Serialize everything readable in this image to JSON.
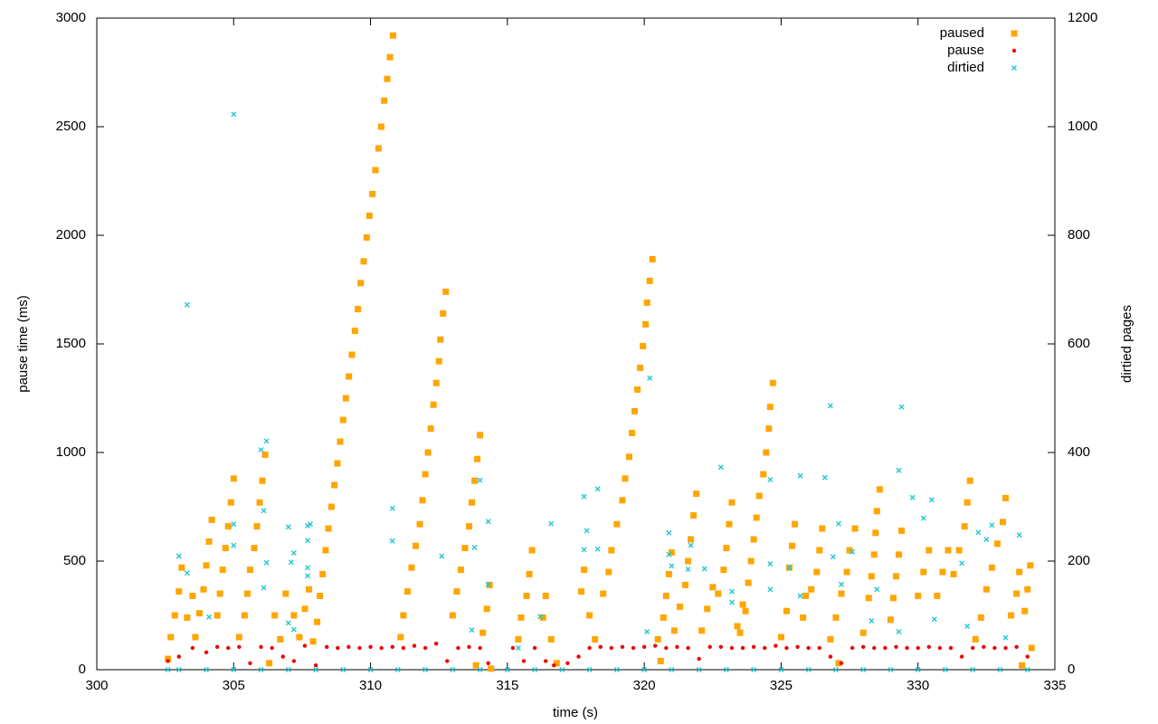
{
  "chart_data": {
    "type": "scatter",
    "xlabel": "time (s)",
    "ylabel": "pause time (ms)",
    "y2label": "dirtied pages",
    "xlim": [
      300,
      335
    ],
    "xticks": [
      300,
      305,
      310,
      315,
      320,
      325,
      330,
      335
    ],
    "ylim": [
      0,
      3000
    ],
    "yticks": [
      0,
      500,
      1000,
      1500,
      2000,
      2500,
      3000
    ],
    "y2lim": [
      0,
      1200
    ],
    "y2ticks": [
      0,
      200,
      400,
      600,
      800,
      1000,
      1200
    ],
    "legend": "top-right",
    "series": [
      {
        "name": "paused",
        "color": "#ffa500",
        "marker": "square",
        "axis": "y",
        "x": [
          302.6,
          302.7,
          302.85,
          303.0,
          303.1,
          303.3,
          303.5,
          303.6,
          303.75,
          303.9,
          304.0,
          304.1,
          304.2,
          304.4,
          304.5,
          304.6,
          304.7,
          304.8,
          304.9,
          305.0,
          305.2,
          305.4,
          305.5,
          305.6,
          305.75,
          305.85,
          305.95,
          306.05,
          306.15,
          306.3,
          306.5,
          306.7,
          306.9,
          307.2,
          307.4,
          307.6,
          307.75,
          307.9,
          308.05,
          308.15,
          308.25,
          308.36,
          308.46,
          308.57,
          308.68,
          308.79,
          308.89,
          309.0,
          309.1,
          309.21,
          309.32,
          309.43,
          309.54,
          309.64,
          309.75,
          309.86,
          309.96,
          310.07,
          310.18,
          310.29,
          310.39,
          310.5,
          310.61,
          310.71,
          310.82,
          311.1,
          311.2,
          311.35,
          311.5,
          311.65,
          311.8,
          311.9,
          312.0,
          312.1,
          312.2,
          312.3,
          312.4,
          312.5,
          312.55,
          312.65,
          312.75,
          313.0,
          313.15,
          313.3,
          313.45,
          313.6,
          313.7,
          313.8,
          313.9,
          314.0,
          313.85,
          314.1,
          314.25,
          314.35,
          314.4,
          315.4,
          315.5,
          315.7,
          315.8,
          315.9,
          316.3,
          316.4,
          316.6,
          316.8,
          317.7,
          317.8,
          318.0,
          318.2,
          318.5,
          318.7,
          318.8,
          319.0,
          319.2,
          319.3,
          319.45,
          319.55,
          319.65,
          319.75,
          319.85,
          319.95,
          320.05,
          320.1,
          320.2,
          320.3,
          320.6,
          320.5,
          320.7,
          320.8,
          320.9,
          321.0,
          321.1,
          321.3,
          321.5,
          321.6,
          321.7,
          321.8,
          321.9,
          322.1,
          322.3,
          322.5,
          322.7,
          322.9,
          323.0,
          323.1,
          323.2,
          323.5,
          323.7,
          323.4,
          323.6,
          323.8,
          323.9,
          324.0,
          324.1,
          324.2,
          324.35,
          324.45,
          324.55,
          324.6,
          324.7,
          325.0,
          325.2,
          325.3,
          325.4,
          325.5,
          325.8,
          325.9,
          326.1,
          326.3,
          326.4,
          326.5,
          326.8,
          327.0,
          327.1,
          327.2,
          327.4,
          327.5,
          327.7,
          328.0,
          328.2,
          328.3,
          328.4,
          328.45,
          328.5,
          328.6,
          329.0,
          329.1,
          329.2,
          329.3,
          329.4,
          330.0,
          330.2,
          330.4,
          330.7,
          330.9,
          331.1,
          331.3,
          331.5,
          331.7,
          331.8,
          331.9,
          332.1,
          332.3,
          332.5,
          332.7,
          332.9,
          333.1,
          333.2,
          333.4,
          333.6,
          333.7,
          333.8,
          333.9,
          334.0,
          334.1,
          334.15
        ],
        "values": [
          50,
          150,
          250,
          360,
          470,
          240,
          340,
          150,
          260,
          370,
          480,
          590,
          690,
          250,
          350,
          460,
          560,
          660,
          770,
          880,
          150,
          250,
          350,
          460,
          560,
          660,
          770,
          870,
          990,
          30,
          250,
          140,
          350,
          250,
          150,
          280,
          370,
          130,
          220,
          340,
          440,
          550,
          650,
          750,
          850,
          950,
          1050,
          1150,
          1250,
          1350,
          1450,
          1560,
          1660,
          1780,
          1880,
          1990,
          2090,
          2190,
          2300,
          2400,
          2500,
          2620,
          2720,
          2820,
          2920,
          150,
          250,
          360,
          470,
          570,
          670,
          780,
          900,
          1000,
          1110,
          1220,
          1320,
          1420,
          1520,
          1640,
          1740,
          250,
          360,
          460,
          560,
          660,
          770,
          870,
          970,
          1080,
          20,
          170,
          280,
          390,
          5,
          140,
          240,
          340,
          440,
          550,
          240,
          340,
          140,
          30,
          360,
          460,
          250,
          140,
          350,
          450,
          550,
          670,
          780,
          880,
          980,
          1090,
          1190,
          1290,
          1390,
          1490,
          1590,
          1690,
          1790,
          1890,
          40,
          140,
          240,
          340,
          440,
          540,
          180,
          290,
          390,
          500,
          600,
          710,
          810,
          180,
          280,
          380,
          350,
          460,
          560,
          670,
          770,
          170,
          270,
          200,
          300,
          400,
          500,
          600,
          700,
          800,
          900,
          1000,
          1110,
          1210,
          1320,
          150,
          270,
          470,
          570,
          670,
          240,
          340,
          370,
          450,
          550,
          650,
          140,
          240,
          30,
          350,
          450,
          550,
          650,
          170,
          330,
          430,
          530,
          630,
          730,
          830,
          230,
          330,
          430,
          530,
          640,
          340,
          450,
          550,
          340,
          450,
          550,
          440,
          550,
          660,
          770,
          870,
          140,
          240,
          370,
          470,
          580,
          680,
          790,
          250,
          350,
          450,
          20,
          270,
          370,
          480,
          100
        ]
      },
      {
        "name": "pause",
        "color": "#ee0000",
        "marker": "dot",
        "axis": "y",
        "x": [
          302.6,
          303.0,
          303.5,
          304.0,
          304.4,
          304.8,
          305.2,
          305.6,
          306.0,
          306.4,
          306.8,
          307.2,
          307.6,
          308.0,
          308.4,
          308.8,
          309.2,
          309.6,
          310.0,
          310.4,
          310.8,
          311.2,
          311.6,
          312.0,
          312.4,
          312.8,
          313.2,
          313.6,
          314.0,
          314.3,
          315.2,
          315.6,
          316.0,
          316.4,
          316.7,
          317.2,
          317.6,
          318.0,
          318.4,
          318.8,
          319.2,
          319.6,
          320.0,
          320.4,
          320.8,
          321.2,
          321.6,
          322.0,
          322.4,
          322.8,
          323.2,
          323.6,
          324.0,
          324.4,
          324.8,
          325.2,
          325.6,
          326.0,
          326.4,
          326.8,
          327.2,
          327.6,
          328.0,
          328.4,
          328.8,
          329.2,
          329.6,
          330.0,
          330.4,
          330.8,
          331.2,
          331.6,
          332.0,
          332.4,
          332.8,
          333.2,
          333.6,
          334.0
        ],
        "values": [
          40,
          60,
          100,
          80,
          105,
          100,
          105,
          30,
          105,
          100,
          60,
          40,
          110,
          20,
          105,
          100,
          105,
          100,
          105,
          100,
          105,
          100,
          110,
          100,
          120,
          40,
          100,
          105,
          100,
          30,
          100,
          40,
          100,
          40,
          20,
          30,
          60,
          100,
          105,
          100,
          105,
          100,
          105,
          110,
          100,
          105,
          100,
          50,
          105,
          105,
          100,
          100,
          105,
          100,
          110,
          100,
          105,
          100,
          100,
          60,
          30,
          100,
          105,
          100,
          100,
          105,
          100,
          100,
          105,
          100,
          100,
          60,
          100,
          105,
          100,
          100,
          105,
          60
        ]
      },
      {
        "name": "dirtied",
        "color": "#22c8d0",
        "marker": "cross",
        "axis": "y2",
        "x": [
          303.3,
          305.0,
          306.2,
          306.0,
          305.0,
          305.0,
          303.0,
          303.3,
          304.1,
          306.1,
          306.2,
          306.1,
          307.0,
          307.2,
          307.7,
          307.8,
          307.7,
          307.7,
          307.7,
          307.0,
          307.2,
          307.1,
          310.8,
          310.8,
          312.6,
          313.7,
          313.8,
          314.0,
          314.3,
          314.3,
          315.4,
          316.2,
          316.6,
          317.8,
          317.9,
          317.8,
          318.3,
          318.3,
          320.1,
          320.2,
          320.9,
          321.0,
          320.9,
          321.6,
          321.7,
          322.2,
          322.8,
          323.2,
          323.2,
          324.6,
          324.6,
          324.6,
          325.3,
          325.7,
          325.7,
          326.6,
          326.8,
          326.9,
          327.1,
          327.2,
          327.6,
          328.3,
          328.5,
          329.4,
          329.3,
          329.3,
          329.8,
          330.2,
          330.5,
          330.6,
          331.6,
          331.8,
          332.2,
          332.5,
          332.7,
          333.7,
          333.2,
          302.6,
          303,
          304,
          305,
          306,
          307,
          308,
          309,
          310,
          311,
          312,
          313,
          314,
          315,
          316,
          317,
          318,
          319,
          320,
          321,
          322,
          323,
          324,
          325,
          326,
          327,
          328,
          329,
          330,
          331,
          332,
          333,
          334
        ],
        "values": [
          672,
          1023,
          421,
          405,
          268,
          229,
          209,
          178,
          97,
          293,
          197,
          151,
          263,
          215,
          265,
          268,
          238,
          188,
          173,
          86,
          74,
          198,
          297,
          237,
          209,
          73,
          225,
          349,
          273,
          157,
          40,
          98,
          269,
          319,
          256,
          221,
          333,
          222,
          70,
          537,
          252,
          191,
          212,
          185,
          229,
          186,
          373,
          144,
          124,
          350,
          195,
          148,
          188,
          136,
          357,
          354,
          486,
          208,
          269,
          157,
          217,
          90,
          148,
          484,
          367,
          70,
          317,
          279,
          313,
          93,
          196,
          80,
          253,
          240,
          266,
          248,
          59,
          0,
          0,
          0,
          0,
          0,
          0,
          0,
          0,
          0,
          0,
          0,
          0,
          0,
          0,
          0,
          0,
          0,
          0,
          0,
          0,
          0,
          0,
          0,
          0,
          0,
          0,
          0,
          0,
          0,
          0,
          0,
          0,
          0
        ]
      }
    ]
  }
}
